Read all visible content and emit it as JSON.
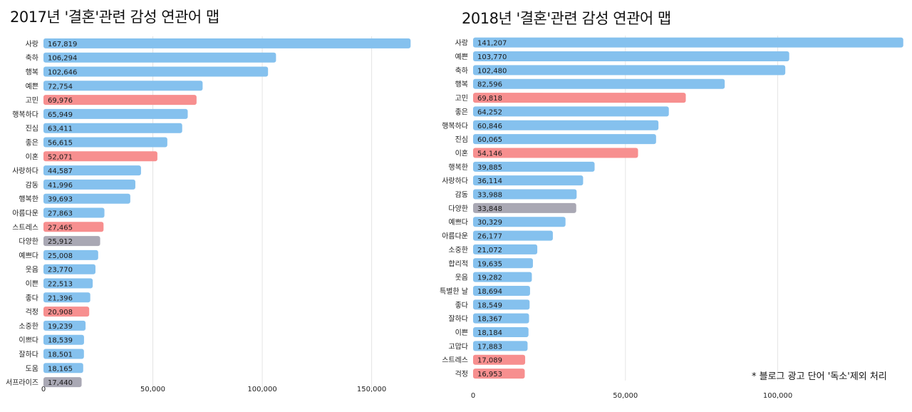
{
  "footnote": "* 블로그 광고 단어 '독소'제외 처리",
  "colors": {
    "positive": "#85c1ee",
    "negative": "#f78f8f",
    "neutral": "#a9a8b4",
    "grid": "#e4e4e4"
  },
  "chart_data": [
    {
      "type": "bar",
      "orientation": "horizontal",
      "title": "2017년 '결혼'관련 감성 연관어 맵",
      "xlim": [
        0,
        170000
      ],
      "xticks": [
        0,
        50000,
        100000,
        150000
      ],
      "xtick_labels": [
        "0",
        "50,000",
        "100,000",
        "150,000"
      ],
      "categories": [
        "사랑",
        "축하",
        "행복",
        "예쁜",
        "고민",
        "행복하다",
        "진심",
        "좋은",
        "이혼",
        "사랑하다",
        "감동",
        "행복한",
        "아름다운",
        "스트레스",
        "다양한",
        "예쁘다",
        "웃음",
        "이쁜",
        "좋다",
        "걱정",
        "소중한",
        "이쁘다",
        "잘하다",
        "도움",
        "서프라이즈"
      ],
      "values": [
        167819,
        106294,
        102646,
        72754,
        69976,
        65949,
        63411,
        56615,
        52071,
        44587,
        41996,
        39693,
        27863,
        27465,
        25912,
        25008,
        23770,
        22513,
        21396,
        20908,
        19239,
        18539,
        18501,
        18165,
        17440
      ],
      "value_labels": [
        "167,819",
        "106,294",
        "102,646",
        "72,754",
        "69,976",
        "65,949",
        "63,411",
        "56,615",
        "52,071",
        "44,587",
        "41,996",
        "39,693",
        "27,863",
        "27,465",
        "25,912",
        "25,008",
        "23,770",
        "22,513",
        "21,396",
        "20,908",
        "19,239",
        "18,539",
        "18,501",
        "18,165",
        "17,440"
      ],
      "sentiment": [
        "positive",
        "positive",
        "positive",
        "positive",
        "negative",
        "positive",
        "positive",
        "positive",
        "negative",
        "positive",
        "positive",
        "positive",
        "positive",
        "negative",
        "neutral",
        "positive",
        "positive",
        "positive",
        "positive",
        "negative",
        "positive",
        "positive",
        "positive",
        "positive",
        "neutral"
      ]
    },
    {
      "type": "bar",
      "orientation": "horizontal",
      "title": "2018년 '결혼'관련 감성 연관어 맵",
      "xlim": [
        0,
        141500
      ],
      "xticks": [
        0,
        50000,
        100000
      ],
      "xtick_labels": [
        "0",
        "50,000",
        "100,000"
      ],
      "categories": [
        "사랑",
        "예쁜",
        "축하",
        "행복",
        "고민",
        "좋은",
        "행복하다",
        "진심",
        "이혼",
        "행복한",
        "사랑하다",
        "감동",
        "다양한",
        "예쁘다",
        "아름다운",
        "소중한",
        "합리적",
        "웃음",
        "특별한 날",
        "좋다",
        "잘하다",
        "이쁜",
        "고맙다",
        "스트레스",
        "걱정"
      ],
      "values": [
        141207,
        103770,
        102480,
        82596,
        69818,
        64252,
        60846,
        60065,
        54146,
        39885,
        36114,
        33988,
        33848,
        30329,
        26177,
        21072,
        19635,
        19282,
        18694,
        18549,
        18367,
        18184,
        17883,
        17089,
        16953
      ],
      "value_labels": [
        "141,207",
        "103,770",
        "102,480",
        "82,596",
        "69,818",
        "64,252",
        "60,846",
        "60,065",
        "54,146",
        "39,885",
        "36,114",
        "33,988",
        "33,848",
        "30,329",
        "26,177",
        "21,072",
        "19,635",
        "19,282",
        "18,694",
        "18,549",
        "18,367",
        "18,184",
        "17,883",
        "17,089",
        "16,953"
      ],
      "sentiment": [
        "positive",
        "positive",
        "positive",
        "positive",
        "negative",
        "positive",
        "positive",
        "positive",
        "negative",
        "positive",
        "positive",
        "positive",
        "neutral",
        "positive",
        "positive",
        "positive",
        "positive",
        "positive",
        "positive",
        "positive",
        "positive",
        "positive",
        "positive",
        "negative",
        "negative"
      ]
    }
  ]
}
